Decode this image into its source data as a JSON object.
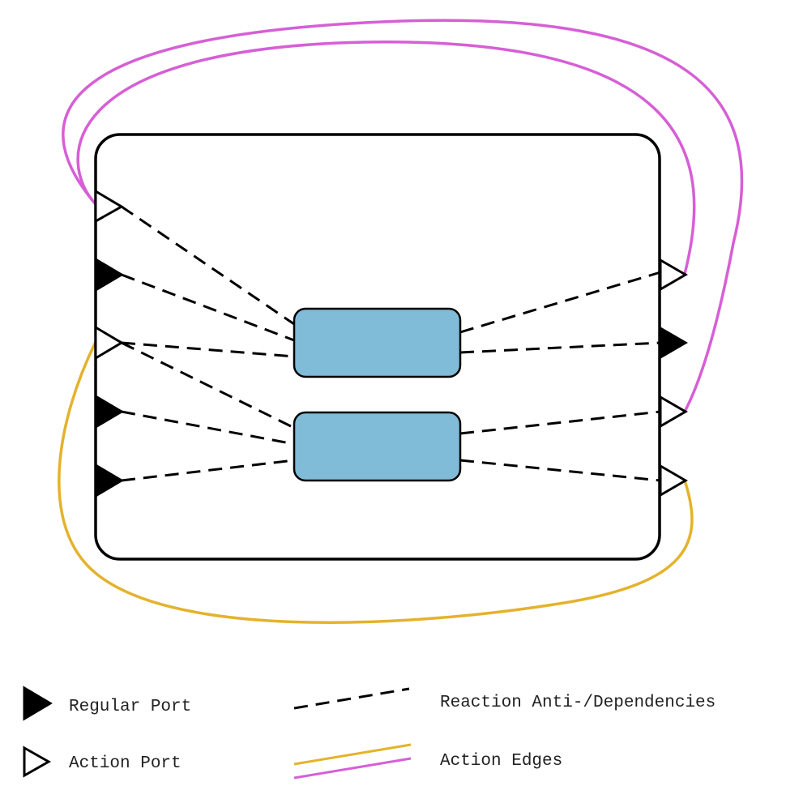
{
  "colors": {
    "stroke": "#000000",
    "reactor_fill": "#80bbd8",
    "action_edge_yellow": "#e4b22c",
    "action_edge_magenta": "#d65fd6",
    "background": "#ffffff"
  },
  "legend": {
    "regular_port": "Regular Port",
    "action_port": "Action Port",
    "dependencies": "Reaction Anti-/Dependencies",
    "action_edges": "Action Edges"
  },
  "ports": {
    "left": [
      "action",
      "regular",
      "action",
      "regular",
      "regular"
    ],
    "right": [
      "action",
      "regular",
      "action",
      "action"
    ]
  },
  "reactions": [
    "reaction-top",
    "reaction-bottom"
  ]
}
